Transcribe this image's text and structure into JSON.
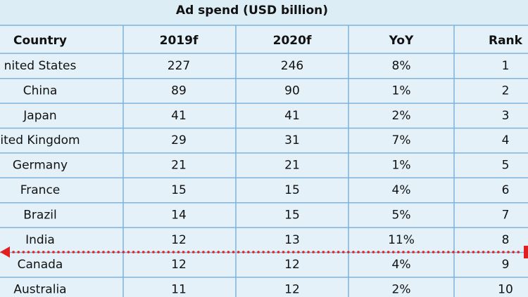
{
  "title": "Ad spend (USD billion)",
  "table": {
    "header": [
      "Country",
      "2019f",
      "2020f",
      "YoY",
      "Rank"
    ],
    "rows": [
      [
        "nited States",
        227,
        246,
        "8%",
        1
      ],
      [
        "China",
        89,
        90,
        "1%",
        2
      ],
      [
        "Japan",
        41,
        41,
        "2%",
        3
      ],
      [
        "ited Kingdom",
        29,
        31,
        "7%",
        4
      ],
      [
        "Germany",
        21,
        21,
        "1%",
        5
      ],
      [
        "France",
        15,
        15,
        "4%",
        6
      ],
      [
        "Brazil",
        14,
        15,
        "5%",
        7
      ],
      [
        "India",
        12,
        13,
        "11%",
        8
      ],
      [
        "Canada",
        12,
        12,
        "4%",
        9
      ],
      [
        "Australia",
        11,
        12,
        "2%",
        10
      ]
    ]
  }
}
